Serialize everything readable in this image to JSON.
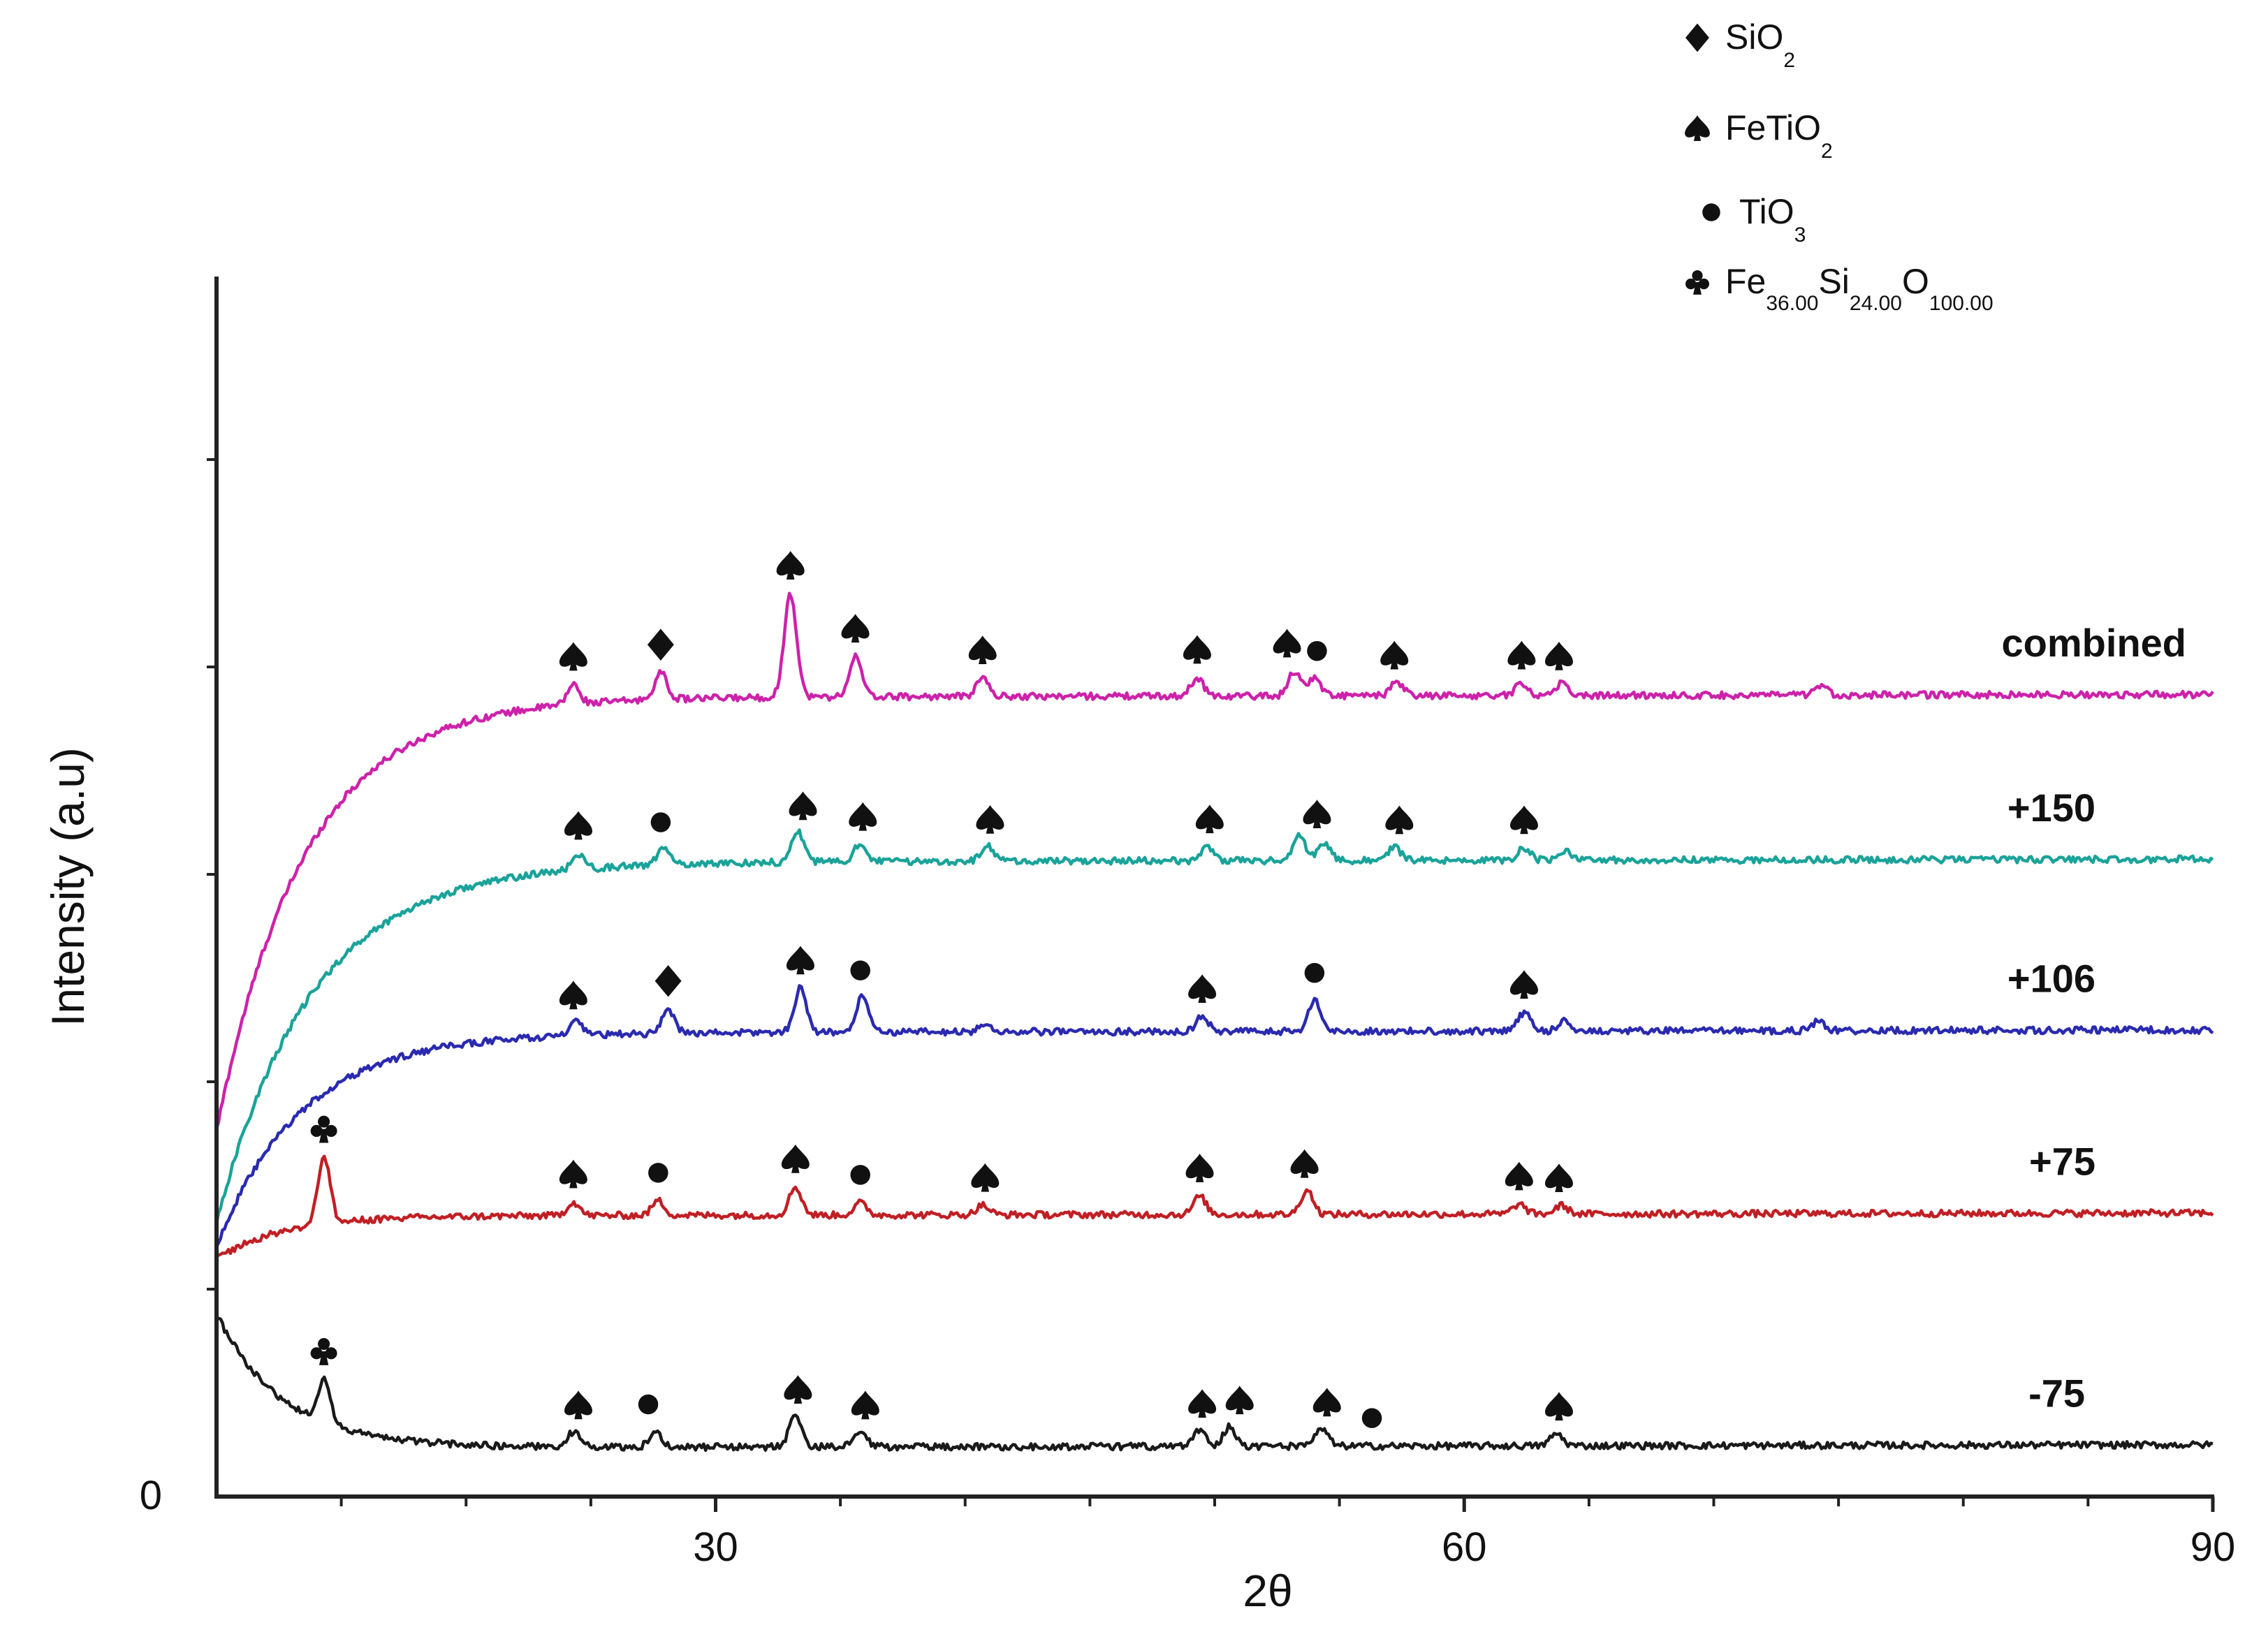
{
  "chart_data": {
    "type": "line",
    "title": "",
    "xlabel": "2θ",
    "ylabel": "Intensity (a.u)",
    "xlim": [
      10,
      90
    ],
    "ylim": [
      0,
      100
    ],
    "x_ticks": [
      {
        "value": 30,
        "label": "30"
      },
      {
        "value": 60,
        "label": "60"
      },
      {
        "value": 90,
        "label": "90"
      }
    ],
    "y_ticks": [
      {
        "value": 0,
        "label": "0"
      }
    ],
    "legend": [
      {
        "key": "silica",
        "symbol": "diamond",
        "text": "SiO",
        "sub": "2"
      },
      {
        "key": "ilmenite",
        "symbol": "spade",
        "text": "FeTiO",
        "sub": "2"
      },
      {
        "key": "titania",
        "symbol": "circle",
        "text": "TiO",
        "sub": "3"
      },
      {
        "key": "fayalite",
        "symbol": "club",
        "parts": [
          {
            "t": "Fe"
          },
          {
            "s": "36.00"
          },
          {
            "t": "Si"
          },
          {
            "s": "24.00"
          },
          {
            "t": "O"
          },
          {
            "s": "100.00"
          }
        ]
      }
    ],
    "series": [
      {
        "name": "combined",
        "label": "combined",
        "color": "#cc22aa",
        "baseline": 65.5,
        "start": 30,
        "decay": 3.5,
        "peaks": [
          [
            24.3,
            1.6
          ],
          [
            27.8,
            2.2
          ],
          [
            33.0,
            8.5
          ],
          [
            35.6,
            3.3
          ],
          [
            40.7,
            1.5
          ],
          [
            49.3,
            1.5
          ],
          [
            53.2,
            2.0
          ],
          [
            54.0,
            1.5
          ],
          [
            57.3,
            1.1
          ],
          [
            62.3,
            1.0
          ],
          [
            63.9,
            1.0
          ],
          [
            74.3,
            0.7
          ]
        ],
        "markers": [
          [
            24.3,
            "spade"
          ],
          [
            27.8,
            "diamond"
          ],
          [
            33.0,
            "spade"
          ],
          [
            35.6,
            "spade"
          ],
          [
            40.7,
            "spade"
          ],
          [
            49.3,
            "spade"
          ],
          [
            52.9,
            "spade"
          ],
          [
            54.1,
            "circle"
          ],
          [
            57.2,
            "spade"
          ],
          [
            62.3,
            "spade"
          ],
          [
            63.8,
            "spade"
          ]
        ]
      },
      {
        "name": "+150",
        "label": "+150",
        "color": "#1aa39a",
        "baseline": 52,
        "start": 22.5,
        "decay": 3.8,
        "peaks": [
          [
            24.5,
            1.3
          ],
          [
            27.9,
            1.3
          ],
          [
            33.3,
            2.5
          ],
          [
            35.8,
            1.5
          ],
          [
            40.9,
            1.2
          ],
          [
            49.7,
            1.2
          ],
          [
            53.4,
            2.0
          ],
          [
            54.4,
            1.5
          ],
          [
            57.2,
            1.1
          ],
          [
            62.4,
            1.0
          ],
          [
            64.0,
            0.8
          ]
        ],
        "markers": [
          [
            24.5,
            "spade"
          ],
          [
            27.8,
            "circle"
          ],
          [
            33.5,
            "spade"
          ],
          [
            35.9,
            "spade"
          ],
          [
            41.0,
            "spade"
          ],
          [
            49.8,
            "spade"
          ],
          [
            54.1,
            "spade"
          ],
          [
            57.4,
            "spade"
          ],
          [
            62.4,
            "spade"
          ]
        ]
      },
      {
        "name": "+106",
        "label": "+106",
        "color": "#2a2ab0",
        "baseline": 38,
        "start": 20.5,
        "decay": 3.4,
        "peaks": [
          [
            24.4,
            1.1
          ],
          [
            28.1,
            2.0
          ],
          [
            33.4,
            3.6
          ],
          [
            35.9,
            3.0
          ],
          [
            40.8,
            0.6
          ],
          [
            49.5,
            1.2
          ],
          [
            54.0,
            2.5
          ],
          [
            62.4,
            1.5
          ],
          [
            64.0,
            0.8
          ],
          [
            74.2,
            0.8
          ]
        ],
        "markers": [
          [
            24.3,
            "spade"
          ],
          [
            28.1,
            "diamond"
          ],
          [
            33.4,
            "spade"
          ],
          [
            35.8,
            "circle"
          ],
          [
            49.5,
            "spade"
          ],
          [
            54.0,
            "circle"
          ],
          [
            62.4,
            "spade"
          ]
        ]
      },
      {
        "name": "+75",
        "label": "+75",
        "color": "#c01f24",
        "baseline": 23,
        "start": 19.5,
        "decay": 2.6,
        "peaks": [
          [
            14.3,
            5.5
          ],
          [
            24.3,
            1.1
          ],
          [
            27.7,
            1.2
          ],
          [
            33.2,
            2.3
          ],
          [
            35.8,
            1.0
          ],
          [
            40.7,
            0.8
          ],
          [
            49.4,
            1.5
          ],
          [
            53.7,
            2.0
          ],
          [
            62.2,
            0.8
          ],
          [
            63.9,
            0.7
          ]
        ],
        "markers": [
          [
            14.3,
            "club"
          ],
          [
            24.3,
            "spade"
          ],
          [
            27.7,
            "circle"
          ],
          [
            33.2,
            "spade"
          ],
          [
            35.8,
            "circle"
          ],
          [
            40.8,
            "spade"
          ],
          [
            49.4,
            "spade"
          ],
          [
            53.6,
            "spade"
          ],
          [
            62.2,
            "spade"
          ],
          [
            63.8,
            "spade"
          ]
        ]
      },
      {
        "name": "-75",
        "label": "-75",
        "color": "#1a1a1a",
        "baseline": 4,
        "start": 15,
        "decay": 2.6,
        "peaks": [
          [
            14.3,
            3.5
          ],
          [
            24.3,
            1.2
          ],
          [
            27.6,
            1.2
          ],
          [
            33.2,
            2.6
          ],
          [
            35.8,
            1.2
          ],
          [
            49.4,
            1.3
          ],
          [
            50.6,
            1.6
          ],
          [
            54.3,
            1.4
          ],
          [
            63.7,
            1.0
          ]
        ],
        "markers": [
          [
            14.3,
            "club"
          ],
          [
            24.5,
            "spade"
          ],
          [
            27.3,
            "circle"
          ],
          [
            33.3,
            "spade"
          ],
          [
            36.0,
            "spade"
          ],
          [
            49.5,
            "spade"
          ],
          [
            51.0,
            "spade"
          ],
          [
            54.5,
            "spade"
          ],
          [
            56.3,
            "circle"
          ],
          [
            63.8,
            "spade"
          ]
        ]
      }
    ]
  }
}
